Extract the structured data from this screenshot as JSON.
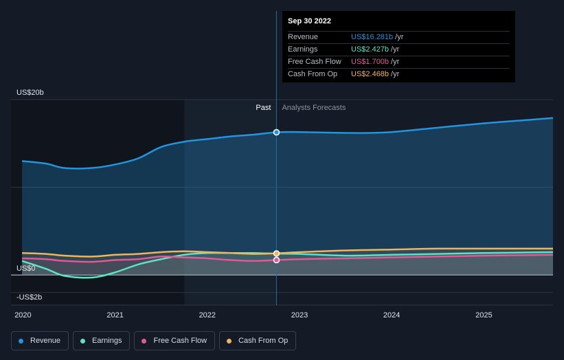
{
  "chart_data": {
    "type": "area",
    "x_domain": [
      2019.87,
      2025.75
    ],
    "ylim": [
      -2.1,
      20
    ],
    "y_ticks": [
      {
        "value": 20,
        "label": "US$20b"
      },
      {
        "value": 0,
        "label": "US$0"
      },
      {
        "value": -2,
        "label": "-US$2b"
      }
    ],
    "x_ticks": [
      {
        "value": 2020,
        "label": "2020"
      },
      {
        "value": 2021,
        "label": "2021"
      },
      {
        "value": 2022,
        "label": "2022"
      },
      {
        "value": 2023,
        "label": "2023"
      },
      {
        "value": 2024,
        "label": "2024"
      },
      {
        "value": 2025,
        "label": "2025"
      }
    ],
    "divider_x": 2022.75,
    "past_label": "Past",
    "forecast_label": "Analysts Forecasts",
    "series": [
      {
        "name": "Revenue",
        "color": "#2394df",
        "points": [
          [
            2019.99,
            13.0
          ],
          [
            2020.25,
            12.7
          ],
          [
            2020.45,
            12.2
          ],
          [
            2020.75,
            12.2
          ],
          [
            2021.0,
            12.6
          ],
          [
            2021.25,
            13.3
          ],
          [
            2021.5,
            14.6
          ],
          [
            2021.75,
            15.2
          ],
          [
            2022.0,
            15.5
          ],
          [
            2022.25,
            15.8
          ],
          [
            2022.5,
            16.0
          ],
          [
            2022.75,
            16.281
          ],
          [
            2023.0,
            16.3
          ],
          [
            2023.5,
            16.2
          ],
          [
            2023.75,
            16.2
          ],
          [
            2024.0,
            16.3
          ],
          [
            2024.5,
            16.8
          ],
          [
            2025.0,
            17.3
          ],
          [
            2025.5,
            17.7
          ],
          [
            2025.75,
            17.9
          ]
        ],
        "marker_at": [
          2022.75,
          16.281
        ]
      },
      {
        "name": "Earnings",
        "color": "#5ce3c4",
        "points": [
          [
            2019.99,
            1.6
          ],
          [
            2020.25,
            0.7
          ],
          [
            2020.45,
            -0.1
          ],
          [
            2020.75,
            -0.3
          ],
          [
            2021.0,
            0.3
          ],
          [
            2021.25,
            1.2
          ],
          [
            2021.5,
            1.8
          ],
          [
            2021.75,
            2.3
          ],
          [
            2022.0,
            2.5
          ],
          [
            2022.25,
            2.5
          ],
          [
            2022.5,
            2.5
          ],
          [
            2022.75,
            2.427
          ],
          [
            2023.0,
            2.4
          ],
          [
            2023.5,
            2.2
          ],
          [
            2024.0,
            2.3
          ],
          [
            2024.5,
            2.4
          ],
          [
            2025.0,
            2.5
          ],
          [
            2025.75,
            2.6
          ]
        ]
      },
      {
        "name": "Free Cash Flow",
        "color": "#e05a97",
        "points": [
          [
            2019.99,
            1.9
          ],
          [
            2020.25,
            1.8
          ],
          [
            2020.45,
            1.6
          ],
          [
            2020.75,
            1.5
          ],
          [
            2021.0,
            1.7
          ],
          [
            2021.25,
            1.8
          ],
          [
            2021.5,
            2.1
          ],
          [
            2021.75,
            2.0
          ],
          [
            2022.0,
            1.9
          ],
          [
            2022.25,
            1.7
          ],
          [
            2022.5,
            1.6
          ],
          [
            2022.75,
            1.7
          ],
          [
            2023.0,
            1.8
          ],
          [
            2023.5,
            1.9
          ],
          [
            2024.0,
            2.0
          ],
          [
            2024.5,
            2.1
          ],
          [
            2025.0,
            2.2
          ],
          [
            2025.75,
            2.3
          ]
        ],
        "marker_at": [
          2022.75,
          1.7
        ]
      },
      {
        "name": "Cash From Op",
        "color": "#f0b45c",
        "points": [
          [
            2019.99,
            2.5
          ],
          [
            2020.25,
            2.4
          ],
          [
            2020.45,
            2.2
          ],
          [
            2020.75,
            2.1
          ],
          [
            2021.0,
            2.3
          ],
          [
            2021.25,
            2.4
          ],
          [
            2021.5,
            2.6
          ],
          [
            2021.75,
            2.7
          ],
          [
            2022.0,
            2.6
          ],
          [
            2022.25,
            2.5
          ],
          [
            2022.5,
            2.4
          ],
          [
            2022.75,
            2.468
          ],
          [
            2023.0,
            2.6
          ],
          [
            2023.5,
            2.8
          ],
          [
            2024.0,
            2.9
          ],
          [
            2024.5,
            3.0
          ],
          [
            2025.0,
            3.0
          ],
          [
            2025.75,
            3.0
          ]
        ]
      }
    ]
  },
  "tooltip": {
    "date": "Sep 30 2022",
    "rows": [
      {
        "label": "Revenue",
        "value": "US$16.281b",
        "unit": "/yr",
        "color": "#2394df"
      },
      {
        "label": "Earnings",
        "value": "US$2.427b",
        "unit": "/yr",
        "color": "#5ce3c4"
      },
      {
        "label": "Free Cash Flow",
        "value": "US$1.700b",
        "unit": "/yr",
        "color": "#e05a97"
      },
      {
        "label": "Cash From Op",
        "value": "US$2.468b",
        "unit": "/yr",
        "color": "#f0b45c"
      }
    ]
  },
  "legend": [
    {
      "label": "Revenue",
      "color": "#2394df"
    },
    {
      "label": "Earnings",
      "color": "#5ce3c4"
    },
    {
      "label": "Free Cash Flow",
      "color": "#e05a97"
    },
    {
      "label": "Cash From Op",
      "color": "#f0b45c"
    }
  ]
}
